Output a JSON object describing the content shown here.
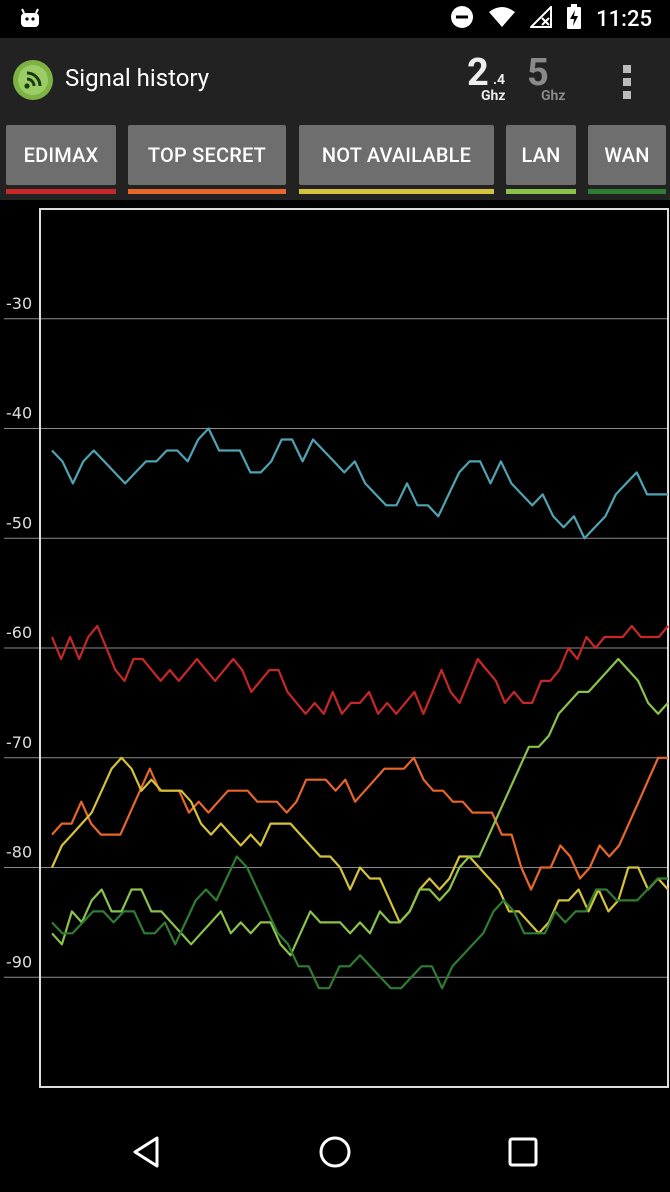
{
  "status_bar": {
    "time": "11:25",
    "icons": [
      "android-icon",
      "do-not-disturb-icon",
      "wifi-icon",
      "no-signal-icon",
      "battery-icon"
    ]
  },
  "app_bar": {
    "title": "Signal history",
    "band_24": {
      "big": "2",
      "sub": ".4",
      "unit": "Ghz"
    },
    "band_5": {
      "big": "5",
      "unit": "Ghz"
    }
  },
  "tabs": [
    {
      "label": "EDIMAX",
      "color": "#c62828"
    },
    {
      "label": "TOP SECRET",
      "color": "#e8662a"
    },
    {
      "label": "NOT AVAILABLE",
      "color": "#d4c23a"
    },
    {
      "label": "LAN",
      "color": "#8bc34a"
    },
    {
      "label": "WAN",
      "color": "#2e7d32"
    }
  ],
  "chart_data": {
    "type": "line",
    "ylim": [
      -100,
      -20
    ],
    "yticks": [
      -30,
      -40,
      -50,
      -60,
      -70,
      -80,
      -90
    ],
    "grid": true,
    "series": [
      {
        "color": "#4fa3b3",
        "values": [
          -42,
          -43,
          -45,
          -43,
          -42,
          -43,
          -44,
          -45,
          -44,
          -43,
          -43,
          -42,
          -42,
          -43,
          -41,
          -40,
          -42,
          -42,
          -42,
          -44,
          -44,
          -43,
          -41,
          -41,
          -43,
          -41,
          -42,
          -43,
          -44,
          -43,
          -45,
          -46,
          -47,
          -47,
          -45,
          -47,
          -47,
          -48,
          -46,
          -44,
          -43,
          -43,
          -45,
          -43,
          -45,
          -46,
          -47,
          -46,
          -48,
          -49,
          -48,
          -50,
          -49,
          -48,
          -46,
          -45,
          -44,
          -46,
          -46,
          -46
        ]
      },
      {
        "color": "#c62828",
        "values": [
          -59,
          -61,
          -59,
          -61,
          -59,
          -58,
          -60,
          -62,
          -63,
          -61,
          -61,
          -62,
          -63,
          -62,
          -63,
          -62,
          -61,
          -62,
          -63,
          -62,
          -61,
          -62,
          -64,
          -63,
          -62,
          -62,
          -64,
          -65,
          -66,
          -65,
          -66,
          -64,
          -66,
          -65,
          -65,
          -64,
          -66,
          -65,
          -66,
          -65,
          -64,
          -66,
          -64,
          -62,
          -64,
          -65,
          -63,
          -61,
          -62,
          -63,
          -65,
          -64,
          -65,
          -65,
          -63,
          -63,
          -62,
          -60,
          -61,
          -59,
          -60,
          -59,
          -59,
          -59,
          -58,
          -59,
          -59,
          -59,
          -58
        ]
      },
      {
        "color": "#e8662a",
        "values": [
          -77,
          -76,
          -76,
          -74,
          -76,
          -77,
          -77,
          -77,
          -75,
          -73,
          -71,
          -73,
          -73,
          -73,
          -75,
          -74,
          -75,
          -74,
          -73,
          -73,
          -73,
          -74,
          -74,
          -74,
          -75,
          -74,
          -72,
          -72,
          -72,
          -73,
          -72,
          -74,
          -73,
          -72,
          -71,
          -71,
          -71,
          -70,
          -72,
          -73,
          -73,
          -74,
          -74,
          -75,
          -75,
          -75,
          -77,
          -77,
          -80,
          -82,
          -80,
          -80,
          -78,
          -79,
          -81,
          -80,
          -78,
          -79,
          -78,
          -76,
          -74,
          -72,
          -70,
          -70
        ]
      },
      {
        "color": "#d4c23a",
        "values": [
          -80,
          -78,
          -77,
          -76,
          -75,
          -73,
          -71,
          -70,
          -71,
          -73,
          -72,
          -73,
          -73,
          -73,
          -74,
          -76,
          -77,
          -76,
          -77,
          -78,
          -77,
          -78,
          -76,
          -76,
          -76,
          -77,
          -78,
          -79,
          -79,
          -80,
          -82,
          -80,
          -81,
          -81,
          -83,
          -85,
          -84,
          -82,
          -81,
          -82,
          -81,
          -79,
          -79,
          -80,
          -81,
          -82,
          -84,
          -84,
          -85,
          -86,
          -85,
          -83,
          -83,
          -82,
          -84,
          -82,
          -84,
          -83,
          -80,
          -80,
          -82,
          -81,
          -82
        ]
      },
      {
        "color": "#8bc34a",
        "values": [
          -86,
          -87,
          -84,
          -85,
          -83,
          -82,
          -84,
          -84,
          -82,
          -82,
          -84,
          -84,
          -85,
          -86,
          -87,
          -86,
          -85,
          -84,
          -86,
          -85,
          -86,
          -85,
          -85,
          -87,
          -88,
          -86,
          -84,
          -85,
          -85,
          -85,
          -86,
          -85,
          -86,
          -84,
          -85,
          -85,
          -84,
          -82,
          -82,
          -83,
          -82,
          -80,
          -79,
          -79,
          -77,
          -75,
          -73,
          -71,
          -69,
          -69,
          -68,
          -66,
          -65,
          -64,
          -64,
          -63,
          -62,
          -61,
          -62,
          -63,
          -65,
          -66,
          -65
        ]
      },
      {
        "color": "#2e7d32",
        "values": [
          -85,
          -86,
          -86,
          -85,
          -84,
          -84,
          -85,
          -84,
          -84,
          -86,
          -86,
          -85,
          -87,
          -85,
          -83,
          -82,
          -83,
          -81,
          -79,
          -80,
          -82,
          -84,
          -86,
          -87,
          -89,
          -89,
          -91,
          -91,
          -89,
          -89,
          -88,
          -89,
          -90,
          -91,
          -91,
          -90,
          -89,
          -89,
          -91,
          -89,
          -88,
          -87,
          -86,
          -84,
          -83,
          -84,
          -86,
          -86,
          -86,
          -84,
          -85,
          -84,
          -84,
          -82,
          -82,
          -83,
          -83,
          -83,
          -82,
          -81,
          -81
        ]
      }
    ]
  }
}
